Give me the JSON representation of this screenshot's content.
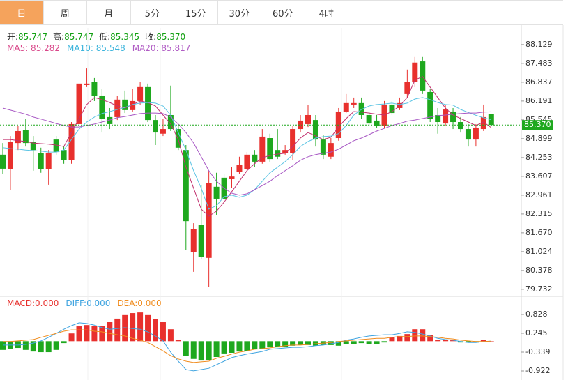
{
  "tabs": [
    "日",
    "周",
    "月",
    "5分",
    "15分",
    "30分",
    "60分",
    "4时"
  ],
  "active_tab": "日",
  "chart_data": [
    {
      "type": "candlestick",
      "info": [
        {
          "label": "开:",
          "value": "85.747"
        },
        {
          "label": "高:",
          "value": "85.747"
        },
        {
          "label": "低:",
          "value": "85.345"
        },
        {
          "label": "收:",
          "value": "85.370"
        }
      ],
      "info_value_color": "#12a012",
      "up_color": "#e8302d",
      "down_color": "#1ea81e",
      "ylim": [
        79.49,
        88.7
      ],
      "yticks": [
        88.129,
        87.483,
        86.837,
        86.191,
        85.545,
        84.899,
        84.253,
        83.607,
        82.961,
        82.315,
        {
          "value": 81.67,
          "label": "81.670"
        },
        81.024,
        80.378,
        79.732
      ],
      "last_price": 85.37,
      "last_price_label": "85.370",
      "last_price_color": "#1ea81e",
      "ohlc": [
        [
          84.35,
          84.75,
          83.68,
          83.87
        ],
        [
          83.85,
          84.99,
          83.15,
          84.8
        ],
        [
          84.75,
          85.35,
          84.51,
          85.16
        ],
        [
          85.19,
          85.59,
          84.63,
          84.75
        ],
        [
          84.8,
          84.99,
          83.8,
          84.51
        ],
        [
          84.4,
          84.59,
          83.73,
          83.85
        ],
        [
          83.85,
          84.51,
          83.32,
          84.4
        ],
        [
          84.87,
          84.99,
          84.35,
          84.44
        ],
        [
          84.51,
          84.63,
          84.04,
          84.16
        ],
        [
          84.16,
          85.47,
          84.04,
          85.4
        ],
        [
          85.4,
          86.91,
          85.35,
          86.79
        ],
        [
          86.74,
          87.31,
          86.67,
          86.79
        ],
        [
          86.84,
          86.98,
          86.19,
          86.36
        ],
        [
          86.38,
          86.6,
          85.11,
          85.59
        ],
        [
          85.64,
          85.95,
          85.23,
          85.4
        ],
        [
          85.64,
          86.36,
          85.54,
          86.24
        ],
        [
          86.24,
          86.55,
          85.78,
          85.88
        ],
        [
          85.88,
          86.6,
          85.83,
          86.19
        ],
        [
          86.19,
          86.84,
          86.07,
          86.67
        ],
        [
          86.67,
          86.79,
          85.47,
          85.54
        ],
        [
          85.54,
          85.71,
          84.68,
          85.11
        ],
        [
          85.07,
          85.59,
          84.99,
          85.23
        ],
        [
          85.71,
          86.72,
          85.16,
          85.23
        ],
        [
          85.23,
          85.35,
          84.51,
          84.59
        ],
        [
          84.51,
          84.68,
          81.09,
          82.07
        ],
        [
          81.0,
          82.0,
          80.33,
          81.81
        ],
        [
          81.93,
          83.32,
          80.76,
          80.85
        ],
        [
          80.81,
          83.8,
          79.8,
          83.37
        ],
        [
          83.25,
          83.73,
          82.29,
          82.84
        ],
        [
          83.56,
          83.68,
          82.72,
          82.84
        ],
        [
          83.51,
          83.92,
          83.2,
          83.6
        ],
        [
          83.75,
          84.28,
          83.68,
          83.99
        ],
        [
          83.85,
          84.44,
          83.75,
          84.35
        ],
        [
          84.35,
          84.51,
          83.92,
          84.11
        ],
        [
          84.11,
          85.23,
          84.04,
          84.97
        ],
        [
          84.92,
          85.07,
          84.11,
          84.2
        ],
        [
          84.51,
          85.23,
          84.2,
          84.28
        ],
        [
          84.4,
          84.68,
          84.35,
          84.51
        ],
        [
          84.4,
          85.35,
          84.16,
          85.23
        ],
        [
          85.23,
          85.71,
          85.11,
          85.52
        ],
        [
          85.4,
          86.07,
          85.3,
          85.71
        ],
        [
          85.54,
          85.71,
          84.63,
          84.87
        ],
        [
          84.87,
          85.04,
          84.2,
          84.35
        ],
        [
          84.28,
          84.92,
          84.2,
          84.75
        ],
        [
          84.92,
          85.95,
          84.83,
          85.83
        ],
        [
          85.83,
          86.43,
          85.78,
          86.12
        ],
        [
          86.07,
          86.31,
          85.95,
          86.12
        ],
        [
          86.12,
          86.31,
          85.59,
          85.71
        ],
        [
          85.71,
          85.83,
          85.35,
          85.42
        ],
        [
          85.52,
          85.71,
          85.28,
          85.35
        ],
        [
          85.35,
          86.19,
          85.28,
          86.07
        ],
        [
          86.07,
          86.19,
          85.71,
          85.78
        ],
        [
          85.95,
          86.31,
          85.88,
          86.12
        ],
        [
          86.43,
          87.27,
          86.31,
          86.84
        ],
        [
          86.84,
          87.7,
          86.67,
          87.51
        ],
        [
          87.55,
          87.7,
          86.43,
          86.55
        ],
        [
          86.5,
          86.6,
          85.47,
          85.59
        ],
        [
          85.71,
          85.95,
          85.07,
          85.47
        ],
        [
          85.42,
          86.07,
          85.35,
          85.9
        ],
        [
          85.83,
          85.95,
          85.23,
          85.47
        ],
        [
          85.47,
          85.64,
          85.11,
          85.23
        ],
        [
          85.23,
          85.4,
          84.63,
          84.87
        ],
        [
          84.87,
          85.4,
          84.63,
          85.28
        ],
        [
          85.23,
          86.07,
          85.16,
          85.64
        ],
        [
          85.747,
          85.747,
          85.345,
          85.37
        ]
      ],
      "series": [
        {
          "label": "MA5: 85.282",
          "label_color": "#d9488a",
          "color": "#c2306e",
          "values": [
            84.87,
            84.87,
            84.83,
            84.8,
            84.75,
            84.73,
            84.71,
            84.68,
            84.63,
            85.11,
            85.59,
            86.07,
            86.31,
            86.24,
            86.14,
            86.02,
            85.95,
            86.07,
            86.19,
            86.14,
            86.02,
            85.71,
            85.4,
            84.87,
            83.92,
            83.2,
            82.48,
            82.24,
            82.41,
            82.72,
            83.08,
            83.44,
            83.8,
            84.04,
            84.25,
            84.32,
            84.37,
            84.4,
            84.63,
            84.92,
            85.11,
            84.99,
            84.87,
            84.95,
            85.3,
            85.59,
            85.83,
            85.81,
            85.78,
            85.74,
            85.71,
            85.83,
            86.02,
            86.31,
            86.91,
            87.03,
            86.67,
            86.31,
            85.95,
            85.71,
            85.59,
            85.47,
            85.35,
            85.47,
            85.28
          ]
        },
        {
          "label": "MA10: 85.548",
          "label_color": "#3cb4dc",
          "color": "#5cc4e4",
          "values": [
            84.59,
            84.56,
            84.54,
            84.51,
            84.49,
            84.47,
            84.44,
            84.44,
            84.51,
            84.87,
            85.23,
            85.47,
            85.64,
            85.76,
            85.83,
            85.9,
            85.97,
            86.07,
            86.12,
            86.14,
            86.12,
            86.02,
            85.71,
            85.11,
            84.51,
            83.8,
            83.2,
            82.48,
            82.6,
            82.91,
            82.96,
            82.89,
            82.96,
            83.15,
            83.44,
            83.73,
            83.92,
            84.11,
            84.35,
            84.63,
            84.8,
            84.92,
            84.97,
            84.99,
            85.07,
            85.35,
            85.71,
            85.9,
            86.02,
            86.07,
            86.09,
            86.12,
            86.07,
            86.12,
            86.26,
            86.31,
            86.24,
            86.14,
            86.07,
            86.05,
            85.9,
            85.8,
            85.7,
            85.62,
            85.55
          ]
        },
        {
          "label": "MA20: 85.817",
          "label_color": "#b05cc4",
          "color": "#a858c4",
          "values": [
            85.95,
            85.88,
            85.81,
            85.74,
            85.64,
            85.57,
            85.5,
            85.42,
            85.35,
            85.3,
            85.3,
            85.35,
            85.4,
            85.47,
            85.54,
            85.62,
            85.66,
            85.71,
            85.76,
            85.78,
            85.78,
            85.76,
            85.64,
            85.4,
            85.11,
            84.75,
            84.28,
            83.8,
            83.44,
            83.2,
            83.03,
            82.96,
            83.01,
            83.15,
            83.29,
            83.44,
            83.63,
            83.8,
            83.97,
            84.16,
            84.28,
            84.35,
            84.4,
            84.44,
            84.54,
            84.68,
            84.83,
            84.92,
            85.04,
            85.16,
            85.25,
            85.35,
            85.42,
            85.5,
            85.54,
            85.59,
            85.64,
            85.69,
            85.71,
            85.74,
            85.76,
            85.78,
            85.78,
            85.81,
            85.82
          ]
        }
      ]
    },
    {
      "type": "macd",
      "macd_label": "MACD:0.000",
      "macd_label_color": "#e8302d",
      "up_color": "#e8302d",
      "down_color": "#1ea81e",
      "ylim": [
        -1.095,
        1.325
      ],
      "yticks": [
        0.828,
        0.245,
        -0.339,
        -0.922
      ],
      "values": [
        -0.27,
        -0.23,
        -0.21,
        -0.27,
        -0.32,
        -0.34,
        -0.34,
        -0.27,
        -0.06,
        0.24,
        0.46,
        0.5,
        0.48,
        0.48,
        0.59,
        0.7,
        0.81,
        0.87,
        0.89,
        0.81,
        0.68,
        0.59,
        0.37,
        0.05,
        -0.45,
        -0.55,
        -0.6,
        -0.58,
        -0.49,
        -0.38,
        -0.36,
        -0.32,
        -0.3,
        -0.25,
        -0.23,
        -0.19,
        -0.19,
        -0.17,
        -0.14,
        -0.12,
        -0.12,
        -0.14,
        -0.12,
        -0.12,
        -0.14,
        -0.1,
        -0.08,
        -0.06,
        -0.08,
        -0.08,
        -0.04,
        0.12,
        0.16,
        0.22,
        0.37,
        0.37,
        0.18,
        0.05,
        0.05,
        0.05,
        -0.04,
        -0.04,
        -0.04,
        0.03,
        0.0
      ],
      "series": [
        {
          "label": "DIFF:0.000",
          "color": "#3fa4e0",
          "values": [
            -0.12,
            -0.12,
            -0.12,
            -0.1,
            -0.06,
            0.01,
            0.12,
            0.24,
            0.37,
            0.48,
            0.57,
            0.55,
            0.5,
            0.42,
            0.37,
            0.39,
            0.42,
            0.39,
            0.37,
            0.29,
            0.16,
            0.01,
            -0.34,
            -0.62,
            -0.88,
            -0.92,
            -0.88,
            -0.84,
            -0.73,
            -0.62,
            -0.51,
            -0.45,
            -0.4,
            -0.36,
            -0.32,
            -0.25,
            -0.23,
            -0.21,
            -0.19,
            -0.19,
            -0.17,
            -0.14,
            -0.12,
            -0.08,
            -0.04,
            0.03,
            0.07,
            0.12,
            0.16,
            0.18,
            0.2,
            0.2,
            0.24,
            0.29,
            0.27,
            0.22,
            0.16,
            0.09,
            0.05,
            0.03,
            -0.01,
            -0.04,
            -0.04,
            -0.01,
            0.0
          ]
        },
        {
          "label": "DEA:0.000",
          "color": "#f08c1e",
          "values": [
            -0.01,
            -0.01,
            0.01,
            0.03,
            0.05,
            0.12,
            0.18,
            0.24,
            0.31,
            0.35,
            0.35,
            0.35,
            0.31,
            0.29,
            0.24,
            0.2,
            0.16,
            0.09,
            0.03,
            -0.04,
            -0.17,
            -0.3,
            -0.45,
            -0.55,
            -0.62,
            -0.66,
            -0.64,
            -0.62,
            -0.53,
            -0.47,
            -0.4,
            -0.34,
            -0.3,
            -0.25,
            -0.23,
            -0.21,
            -0.17,
            -0.14,
            -0.12,
            -0.12,
            -0.1,
            -0.08,
            -0.06,
            -0.04,
            -0.01,
            0.01,
            0.03,
            0.05,
            0.07,
            0.09,
            0.09,
            0.12,
            0.14,
            0.14,
            0.16,
            0.16,
            0.14,
            0.12,
            0.09,
            0.07,
            0.03,
            0.01,
            -0.01,
            -0.01,
            0.0
          ]
        }
      ]
    }
  ]
}
